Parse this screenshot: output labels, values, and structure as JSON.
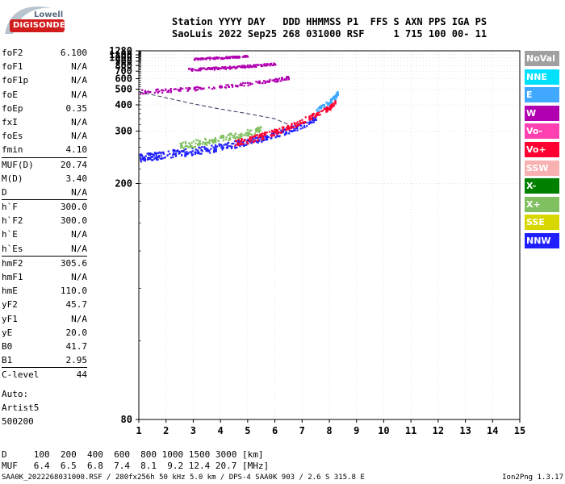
{
  "logo": {
    "word1": "Lowell",
    "word2": "DIGISONDE"
  },
  "header": {
    "line1": "Station YYYY DAY   DDD HHMMSS P1  FFS S AXN PPS IGA PS",
    "line2": "SaoLuis 2022 Sep25 268 031000 RSF     1 715 100 00- 11"
  },
  "params": [
    {
      "name": "foF2",
      "value": "6.100"
    },
    {
      "name": "foF1",
      "value": "N/A"
    },
    {
      "name": "foF1p",
      "value": "N/A"
    },
    {
      "name": "foE",
      "value": "N/A"
    },
    {
      "name": "foEp",
      "value": "0.35"
    },
    {
      "name": "fxI",
      "value": "N/A"
    },
    {
      "name": "foEs",
      "value": "N/A"
    },
    {
      "name": "fmin",
      "value": "4.10"
    },
    {
      "name": "MUF(D)",
      "value": "20.74"
    },
    {
      "name": "M(D)",
      "value": "3.40"
    },
    {
      "name": "D",
      "value": "N/A"
    },
    {
      "name": "h`F",
      "value": "300.0"
    },
    {
      "name": "h`F2",
      "value": "300.0"
    },
    {
      "name": "h`E",
      "value": "N/A"
    },
    {
      "name": "h`Es",
      "value": "N/A"
    },
    {
      "name": "hmF2",
      "value": "305.6"
    },
    {
      "name": "hmF1",
      "value": "N/A"
    },
    {
      "name": "hmE",
      "value": "110.0"
    },
    {
      "name": "yF2",
      "value": "45.7"
    },
    {
      "name": "yF1",
      "value": "N/A"
    },
    {
      "name": "yE",
      "value": "20.0"
    },
    {
      "name": "B0",
      "value": "41.7"
    },
    {
      "name": "B1",
      "value": "2.95"
    },
    {
      "name": "C-level",
      "value": "44"
    }
  ],
  "auto": {
    "line1": "Auto:",
    "line2": "Artist5",
    "line3": "500200"
  },
  "legend": [
    {
      "label": "NoVal",
      "color": "#a0a0a0"
    },
    {
      "label": "NNE",
      "color": "#00e0ff"
    },
    {
      "label": "E",
      "color": "#40a8ff"
    },
    {
      "label": "W",
      "color": "#b000b0"
    },
    {
      "label": "Vo-",
      "color": "#ff40b0"
    },
    {
      "label": "Vo+",
      "color": "#ff0030"
    },
    {
      "label": "SSW",
      "color": "#f8b0b0"
    },
    {
      "label": "X-",
      "color": "#008000"
    },
    {
      "label": "X+",
      "color": "#80c060"
    },
    {
      "label": "SSE",
      "color": "#d8d800"
    },
    {
      "label": "NNW",
      "color": "#2020ff"
    }
  ],
  "dmuf": {
    "line1": "D     100  200  400  600  800 1000 1500 3000 [km]",
    "line2": "MUF   6.4  6.5  6.8  7.4  8.1  9.2 12.4 20.7 [MHz]"
  },
  "footer": {
    "left": "SAA0K_2022268031000.RSF / 280fx256h 50 kHz 5.0 km / DPS-4 SAA0K 903 / 2.6 S 315.8 E",
    "right": "Ion2Png 1.3.17"
  },
  "chart_data": {
    "type": "scatter",
    "title": "",
    "xlabel": "",
    "ylabel": "",
    "xlim": [
      1,
      15
    ],
    "ylim": [
      80,
      1280
    ],
    "y_scale": "reciprocal",
    "x_ticks": [
      1,
      2,
      3,
      4,
      5,
      6,
      7,
      8,
      9,
      10,
      11,
      12,
      13,
      14,
      15
    ],
    "y_ticks": [
      80,
      200,
      300,
      400,
      500,
      600,
      700,
      800,
      900,
      1000,
      1100,
      1280
    ],
    "series": [
      {
        "name": "NNW",
        "color": "#2020ff",
        "x": [
          1.0,
          1.3,
          1.6,
          2.0,
          2.5,
          3.0,
          3.5,
          4.0,
          4.5,
          5.0,
          5.5,
          6.0,
          6.5,
          7.0,
          7.5
        ],
        "y": [
          240,
          242,
          244,
          247,
          250,
          253,
          257,
          262,
          268,
          275,
          283,
          292,
          305,
          320,
          345
        ]
      },
      {
        "name": "Vo+",
        "color": "#ff0030",
        "x": [
          4.5,
          5.0,
          5.5,
          6.0,
          6.5,
          7.0,
          7.5,
          8.0,
          8.2
        ],
        "y": [
          270,
          278,
          288,
          300,
          315,
          335,
          360,
          390,
          420
        ]
      },
      {
        "name": "X+",
        "color": "#80c060",
        "x": [
          2.5,
          3.0,
          3.5,
          4.0,
          4.5,
          5.0,
          5.5
        ],
        "y": [
          265,
          270,
          275,
          282,
          290,
          298,
          308
        ]
      },
      {
        "name": "E",
        "color": "#40a8ff",
        "x": [
          7.5,
          8.0,
          8.2,
          8.3
        ],
        "y": [
          380,
          420,
          450,
          480
        ]
      },
      {
        "name": "W",
        "color": "#b000b0",
        "x": [
          1.0,
          2.0,
          3.0,
          4.0,
          5.0,
          6.0,
          6.5
        ],
        "y": [
          485,
          495,
          510,
          530,
          555,
          590,
          620
        ]
      },
      {
        "name": "W",
        "color": "#b000b0",
        "x": [
          2.8,
          3.5,
          4.0,
          4.5,
          5.0,
          5.5,
          6.0
        ],
        "y": [
          740,
          750,
          765,
          780,
          800,
          825,
          850
        ]
      },
      {
        "name": "W",
        "color": "#b000b0",
        "x": [
          3.0,
          3.5,
          4.0,
          4.5,
          5.0
        ],
        "y": [
          980,
          1000,
          1020,
          1045,
          1075
        ]
      }
    ],
    "profile_curve": {
      "x": [
        1.0,
        2.0,
        3.0,
        4.0,
        5.0,
        6.0,
        6.5
      ],
      "y": [
        480,
        440,
        405,
        380,
        360,
        340,
        320
      ]
    },
    "grid": true,
    "legend_position": "right"
  }
}
